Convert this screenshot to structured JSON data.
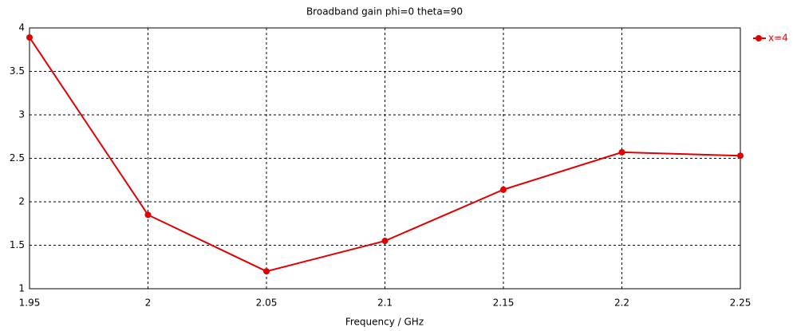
{
  "chart_data": {
    "type": "line",
    "title": "Broadband gain phi=0 theta=90",
    "x_label": "Frequency / GHz",
    "x": [
      1.95,
      2,
      2.05,
      2.1,
      2.15,
      2.2,
      2.25
    ],
    "series": [
      {
        "name": "x=4",
        "color": "#e00000",
        "values": [
          3.89,
          1.85,
          1.2,
          1.55,
          2.14,
          2.57,
          2.53
        ]
      }
    ],
    "xlim": [
      1.95,
      2.25
    ],
    "xticks": [
      1.95,
      2,
      2.05,
      2.1,
      2.15,
      2.2,
      2.25
    ],
    "ylim": [
      1,
      4
    ],
    "yticks": [
      1,
      1.5,
      2,
      2.5,
      3,
      3.5,
      4
    ],
    "grid": true,
    "legend": "right"
  }
}
